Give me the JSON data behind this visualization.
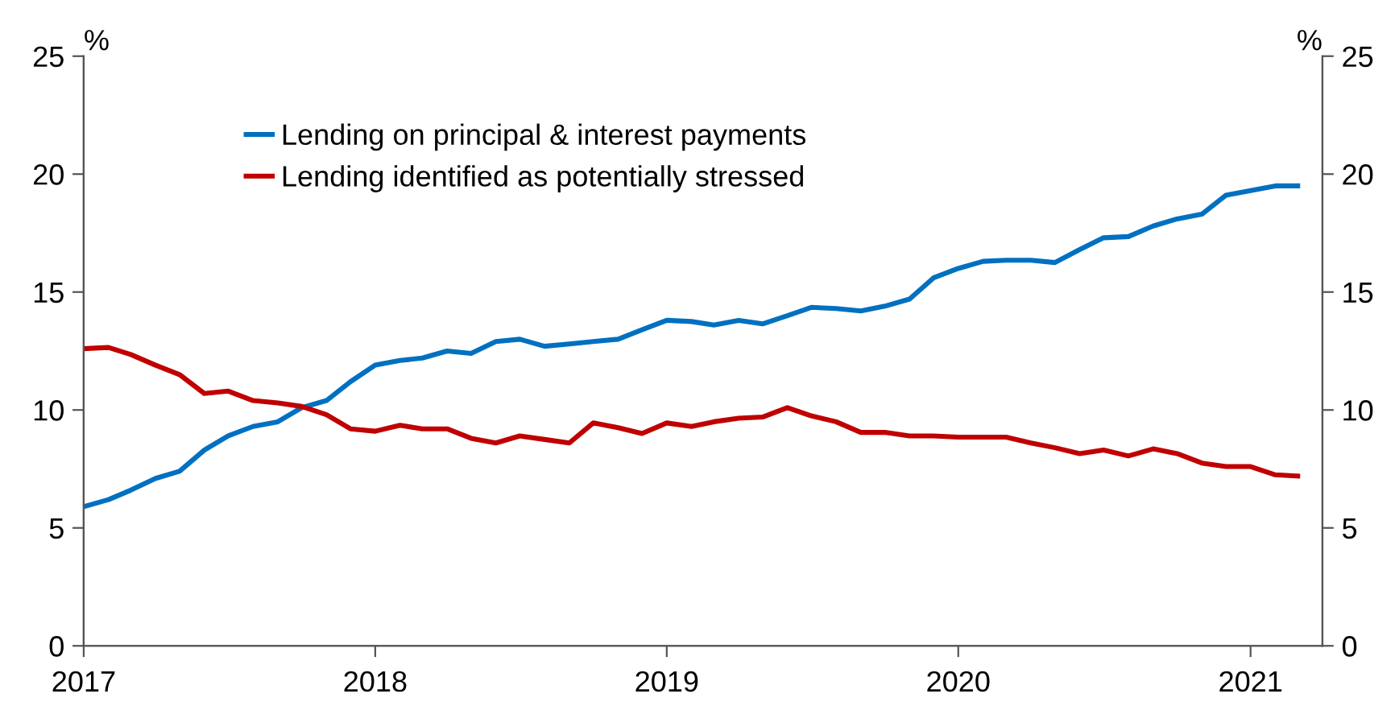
{
  "chart_data": {
    "type": "line",
    "ylabel": "%",
    "y2label": "%",
    "legend": "top left",
    "grid": false,
    "x": [
      "2017-01",
      "2017-02",
      "2017-03",
      "2017-04",
      "2017-05",
      "2017-06",
      "2017-07",
      "2017-08",
      "2017-09",
      "2017-10",
      "2017-11",
      "2017-12",
      "2018-01",
      "2018-02",
      "2018-03",
      "2018-04",
      "2018-05",
      "2018-06",
      "2018-07",
      "2018-08",
      "2018-09",
      "2018-10",
      "2018-11",
      "2018-12",
      "2019-01",
      "2019-02",
      "2019-03",
      "2019-04",
      "2019-05",
      "2019-06",
      "2019-07",
      "2019-08",
      "2019-09",
      "2019-10",
      "2019-11",
      "2019-12",
      "2020-01",
      "2020-02",
      "2020-03",
      "2020-04",
      "2020-05",
      "2020-06",
      "2020-07",
      "2020-08",
      "2020-09",
      "2020-10",
      "2020-11",
      "2020-12",
      "2021-01",
      "2021-02",
      "2021-03"
    ],
    "series": [
      {
        "name": "Lending on principal & interest payments",
        "color": "#0070c0",
        "values": [
          5.9,
          6.2,
          6.6,
          7.1,
          7.4,
          8.3,
          8.9,
          9.3,
          9.5,
          10.1,
          10.4,
          11.2,
          11.9,
          12.1,
          12.2,
          12.5,
          12.4,
          12.9,
          13.0,
          12.7,
          12.8,
          12.9,
          13.0,
          13.4,
          13.8,
          13.75,
          13.6,
          13.8,
          13.65,
          14.0,
          14.35,
          14.3,
          14.2,
          14.4,
          14.7,
          15.6,
          16.0,
          16.3,
          16.35,
          16.35,
          16.25,
          16.8,
          17.3,
          17.35,
          17.8,
          18.1,
          18.3,
          19.1,
          19.3,
          19.5,
          19.5
        ]
      },
      {
        "name": "Lending identified as potentially stressed",
        "color": "#c00000",
        "values": [
          12.6,
          12.65,
          12.35,
          11.9,
          11.5,
          10.7,
          10.8,
          10.4,
          10.3,
          10.15,
          9.8,
          9.2,
          9.1,
          9.35,
          9.2,
          9.2,
          8.8,
          8.6,
          8.9,
          8.75,
          8.6,
          9.45,
          9.25,
          9.0,
          9.45,
          9.3,
          9.5,
          9.65,
          9.7,
          10.1,
          9.75,
          9.5,
          9.05,
          9.05,
          8.9,
          8.9,
          8.85,
          8.85,
          8.85,
          8.6,
          8.4,
          8.15,
          8.3,
          8.05,
          8.35,
          8.15,
          7.75,
          7.6,
          7.6,
          7.25,
          7.2
        ]
      }
    ],
    "xlim": [
      "2017-01",
      "2021-04"
    ],
    "xticks": [
      {
        "value": "2017-01",
        "label": "2017"
      },
      {
        "value": "2018-01",
        "label": "2018"
      },
      {
        "value": "2019-01",
        "label": "2019"
      },
      {
        "value": "2020-01",
        "label": "2020"
      },
      {
        "value": "2021-01",
        "label": "2021"
      }
    ],
    "ylim": [
      0,
      25
    ],
    "yticks": [
      0,
      5,
      10,
      15,
      20,
      25
    ],
    "y2lim": [
      0,
      25
    ],
    "y2ticks": [
      0,
      5,
      10,
      15,
      20,
      25
    ],
    "marker": "none",
    "line_style": "solid"
  }
}
